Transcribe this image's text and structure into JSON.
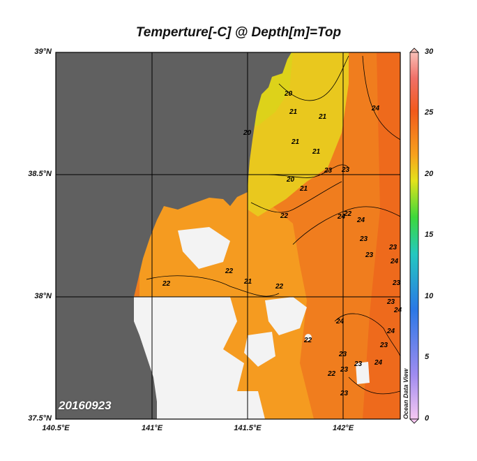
{
  "title": "Temperture[-C] @ Depth[m]=Top",
  "date_label": "20160923",
  "watermark": "Ocean Data View",
  "lat_labels": [
    "39°N",
    "38.5°N",
    "38°N",
    "37.5°N"
  ],
  "lon_labels": [
    "140.5°E",
    "141°E",
    "141.5°E",
    "142°E"
  ],
  "colorbar_ticks": [
    "30",
    "25",
    "20",
    "15",
    "10",
    "5",
    "0"
  ],
  "contour_labels": [
    "20",
    "21",
    "21",
    "21",
    "21",
    "20",
    "20",
    "21",
    "22",
    "23",
    "23",
    "22",
    "24",
    "24",
    "23",
    "23",
    "24",
    "23",
    "23",
    "24",
    "22",
    "22",
    "21",
    "22",
    "24",
    "22",
    "23",
    "23",
    "23",
    "24",
    "23",
    "22",
    "24",
    "23",
    "23",
    "24"
  ],
  "colors": {
    "land": "#606060",
    "no_data": "#f3f3f3",
    "warm": "#f07d1e",
    "orange": "#f59b20",
    "cool": "#e8cf1c",
    "grid": "#000000"
  }
}
